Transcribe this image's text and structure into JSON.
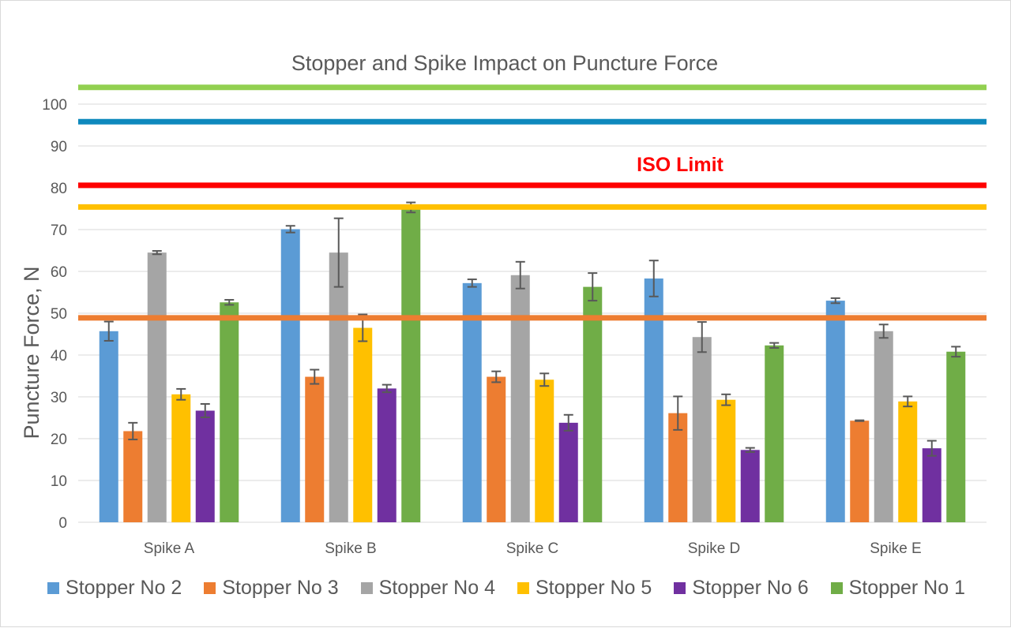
{
  "chart_data": {
    "type": "bar",
    "title": "Stopper and Spike Impact on Puncture Force",
    "ylabel": "Puncture Force, N",
    "xlabel": "",
    "ylim": [
      0,
      100
    ],
    "yticks": [
      0,
      10,
      20,
      30,
      40,
      50,
      60,
      70,
      80,
      90,
      100
    ],
    "grid": true,
    "legend_position": "bottom",
    "categories": [
      "Spike A",
      "Spike B",
      "Spike C",
      "Spike D",
      "Spike E"
    ],
    "series": [
      {
        "name": "Stopper No 2",
        "color": "#5b9bd5",
        "values": [
          45.7,
          70.1,
          57.2,
          58.3,
          53.0
        ],
        "errors": [
          2.3,
          0.8,
          0.9,
          4.3,
          0.6
        ]
      },
      {
        "name": "Stopper No 3",
        "color": "#ed7d31",
        "values": [
          21.8,
          34.8,
          34.8,
          26.1,
          24.3
        ],
        "errors": [
          2.0,
          1.7,
          1.3,
          4.0,
          0.1
        ]
      },
      {
        "name": "Stopper No 4",
        "color": "#a5a5a5",
        "values": [
          64.5,
          64.5,
          59.1,
          44.3,
          45.7
        ],
        "errors": [
          0.4,
          8.2,
          3.2,
          3.6,
          1.6
        ]
      },
      {
        "name": "Stopper No 5",
        "color": "#ffc000",
        "values": [
          30.6,
          46.5,
          34.1,
          29.3,
          28.9
        ],
        "errors": [
          1.3,
          3.2,
          1.5,
          1.3,
          1.2
        ]
      },
      {
        "name": "Stopper No 6",
        "color": "#7030a0",
        "values": [
          26.7,
          32.0,
          23.8,
          17.3,
          17.7
        ],
        "errors": [
          1.6,
          0.9,
          1.9,
          0.5,
          1.8
        ]
      },
      {
        "name": "Stopper No 1",
        "color": "#70ad47",
        "values": [
          52.6,
          75.3,
          56.3,
          42.3,
          40.8
        ],
        "errors": [
          0.6,
          1.2,
          3.3,
          0.6,
          1.2
        ]
      }
    ],
    "reference_lines": [
      {
        "value": 104.0,
        "color": "#92d050"
      },
      {
        "value": 95.8,
        "color": "#0e89bd"
      },
      {
        "value": 80.6,
        "color": "#ff0000",
        "label": "ISO Limit"
      },
      {
        "value": 75.4,
        "color": "#ffc000"
      },
      {
        "value": 48.9,
        "color": "#ed7d31"
      }
    ]
  }
}
